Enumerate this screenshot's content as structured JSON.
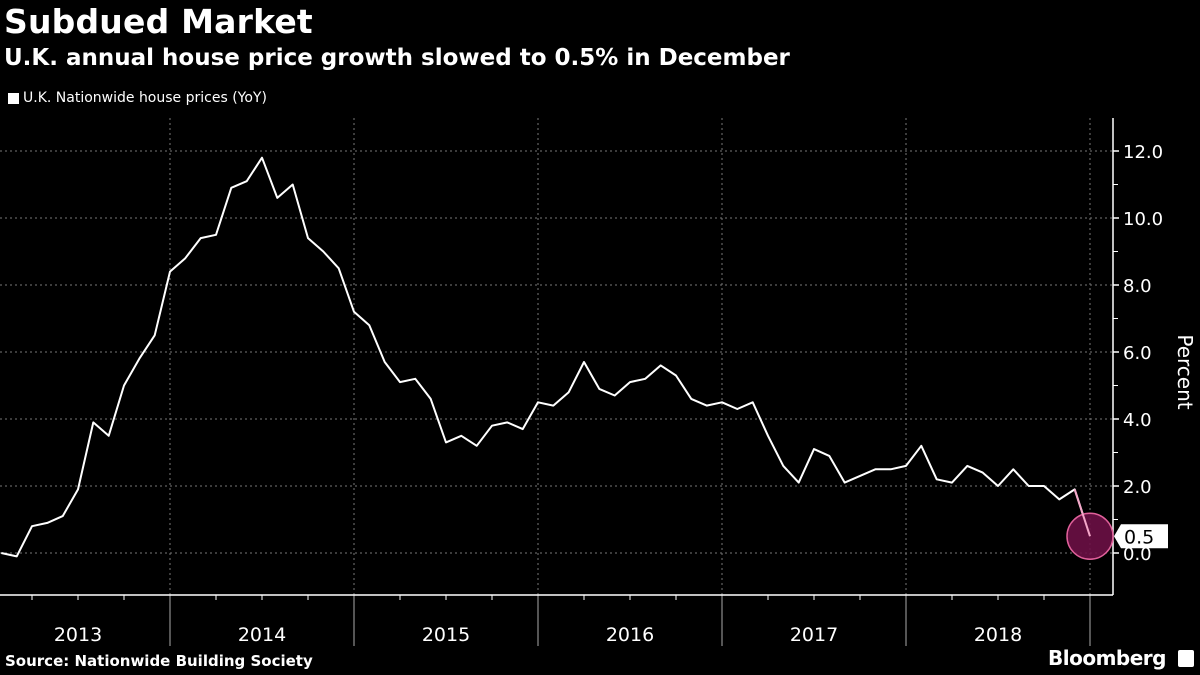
{
  "header": {
    "title": "Subdued Market",
    "subtitle": "U.K. annual house price growth slowed to 0.5% in December"
  },
  "footer": {
    "source": "Source: Nationwide Building Society",
    "brand": "Bloomberg"
  },
  "colors": {
    "background": "#000000",
    "line": "#ffffff",
    "highlight": "#6b0f45",
    "highlight_border": "#e0609a"
  },
  "chart_data": {
    "type": "line",
    "title": "Subdued Market",
    "subtitle": "U.K. annual house price growth slowed to 0.5% in December",
    "ylabel": "Percent",
    "xlabel": "",
    "ylim": [
      -1.3,
      13.0
    ],
    "yticks": [
      "0.0",
      "2.0",
      "4.0",
      "6.0",
      "8.0",
      "10.0",
      "12.0"
    ],
    "xticks": [
      "2013",
      "2014",
      "2015",
      "2016",
      "2017",
      "2018"
    ],
    "grid": true,
    "legend": "top-left",
    "x_start": "2013-01",
    "x_end": "2018-12",
    "series": [
      {
        "name": "U.K. Nationwide house prices (YoY)",
        "values": [
          0.0,
          -0.1,
          0.8,
          0.9,
          1.1,
          1.9,
          3.9,
          3.5,
          5.0,
          5.8,
          6.5,
          8.4,
          8.8,
          9.4,
          9.5,
          10.9,
          11.1,
          11.8,
          10.6,
          11.0,
          9.4,
          9.0,
          8.5,
          7.2,
          6.8,
          5.7,
          5.1,
          5.2,
          4.6,
          3.3,
          3.5,
          3.2,
          3.8,
          3.9,
          3.7,
          4.5,
          4.4,
          4.8,
          5.7,
          4.9,
          4.7,
          5.1,
          5.2,
          5.6,
          5.3,
          4.6,
          4.4,
          4.5,
          4.3,
          4.5,
          3.5,
          2.6,
          2.1,
          3.1,
          2.9,
          2.1,
          2.3,
          2.5,
          2.5,
          2.6,
          3.2,
          2.2,
          2.1,
          2.6,
          2.4,
          2.0,
          2.5,
          2.0,
          2.0,
          1.6,
          1.9,
          0.5
        ]
      }
    ],
    "annotations": [
      {
        "label": "0.5",
        "x": "2018-12",
        "y": 0.5
      }
    ]
  }
}
